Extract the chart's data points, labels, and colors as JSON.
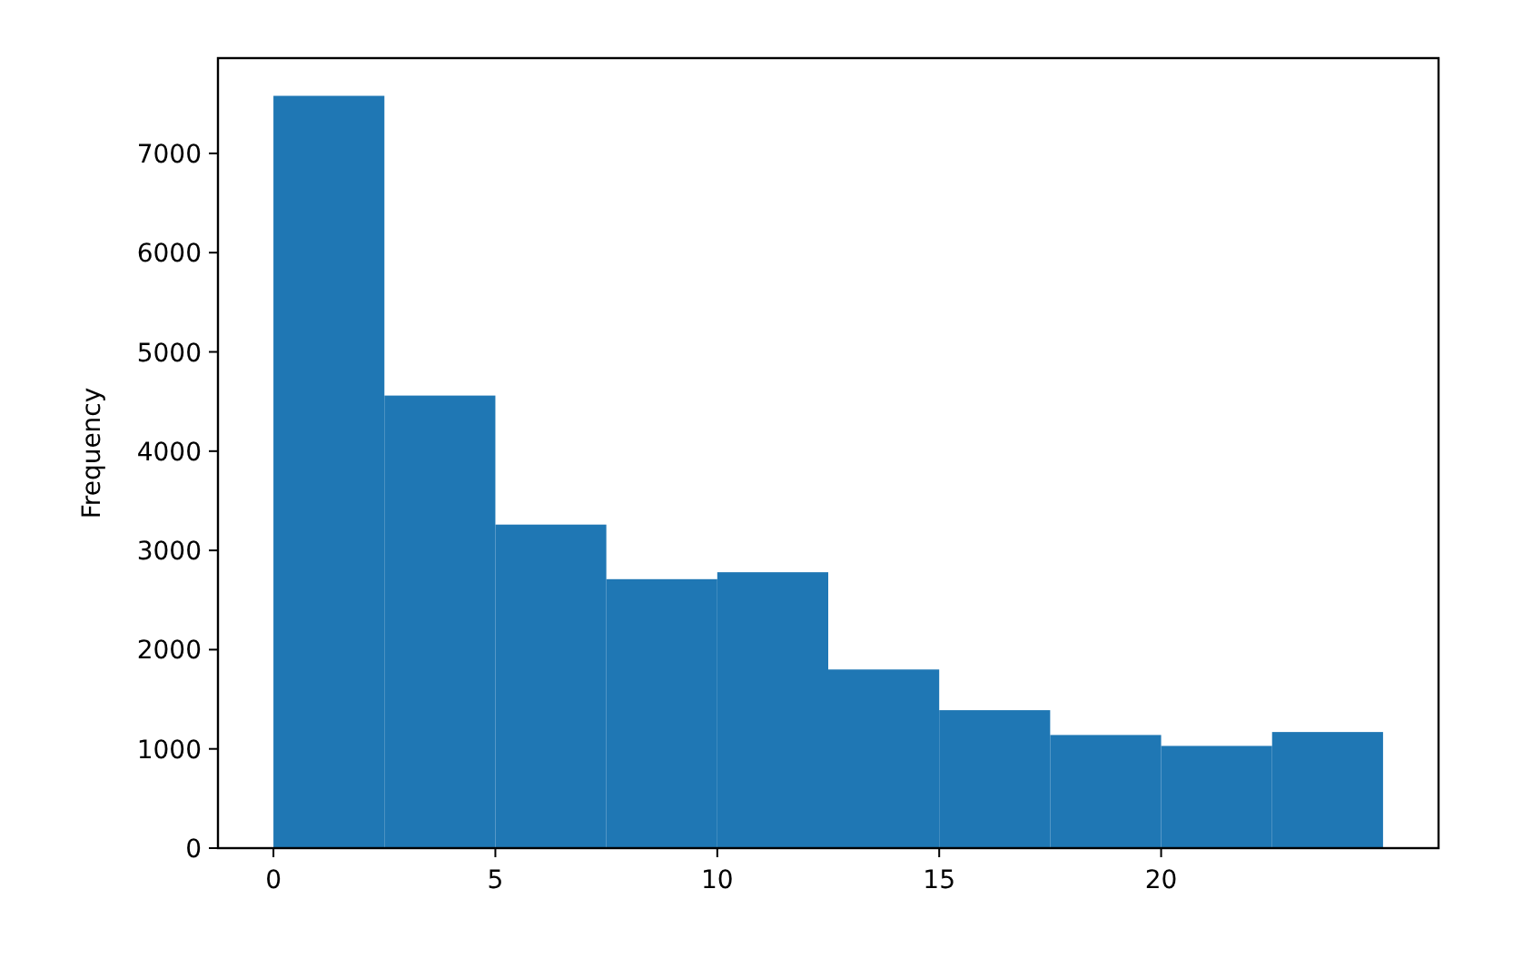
{
  "chart_data": {
    "type": "histogram",
    "ylabel": "Frequency",
    "bins": [
      0,
      2.5,
      5,
      7.5,
      10,
      12.5,
      15,
      17.5,
      20,
      22.5,
      25
    ],
    "values": [
      7580,
      4560,
      3260,
      2710,
      2780,
      1800,
      1390,
      1140,
      1030,
      1170
    ],
    "color": "#1f77b4",
    "xlim": [
      -1.25,
      26.25
    ],
    "xticks": [
      0,
      5,
      10,
      15,
      20
    ],
    "ylim": [
      0,
      7960
    ],
    "yticks": [
      0,
      1000,
      2000,
      3000,
      4000,
      5000,
      6000,
      7000
    ],
    "grid": false
  }
}
